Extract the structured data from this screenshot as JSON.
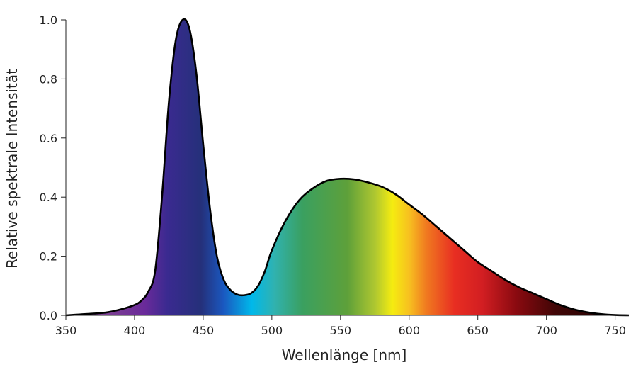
{
  "chart_data": {
    "type": "area",
    "title": "",
    "xlabel": "Wellenlänge [nm]",
    "ylabel": "Relative spektrale Intensität",
    "xlim": [
      350,
      760
    ],
    "ylim": [
      0,
      1.0
    ],
    "x_ticks": [
      "350",
      "400",
      "450",
      "500",
      "550",
      "600",
      "650",
      "700",
      "750"
    ],
    "y_ticks": [
      "0.0",
      "0.2",
      "0.4",
      "0.6",
      "0.8",
      "1.0"
    ],
    "grid": false,
    "legend": "none",
    "fill": "visible spectrum gradient under curve",
    "series": [
      {
        "x": [
          350,
          360,
          370,
          380,
          390,
          400,
          405,
          410,
          415,
          420,
          425,
          430,
          435,
          440,
          445,
          450,
          455,
          460,
          465,
          470,
          475,
          480,
          485,
          490,
          495,
          500,
          510,
          520,
          530,
          540,
          550,
          560,
          570,
          580,
          590,
          600,
          610,
          620,
          630,
          640,
          650,
          660,
          670,
          680,
          690,
          700,
          710,
          720,
          730,
          740,
          750,
          760
        ],
        "y": [
          0.0,
          0.003,
          0.006,
          0.01,
          0.02,
          0.035,
          0.05,
          0.08,
          0.15,
          0.4,
          0.72,
          0.93,
          1.0,
          0.97,
          0.82,
          0.58,
          0.36,
          0.2,
          0.12,
          0.085,
          0.07,
          0.068,
          0.075,
          0.1,
          0.15,
          0.22,
          0.32,
          0.39,
          0.43,
          0.455,
          0.462,
          0.46,
          0.45,
          0.435,
          0.41,
          0.375,
          0.34,
          0.3,
          0.26,
          0.22,
          0.18,
          0.15,
          0.12,
          0.095,
          0.075,
          0.055,
          0.035,
          0.02,
          0.01,
          0.004,
          0.001,
          0.0
        ]
      }
    ]
  }
}
